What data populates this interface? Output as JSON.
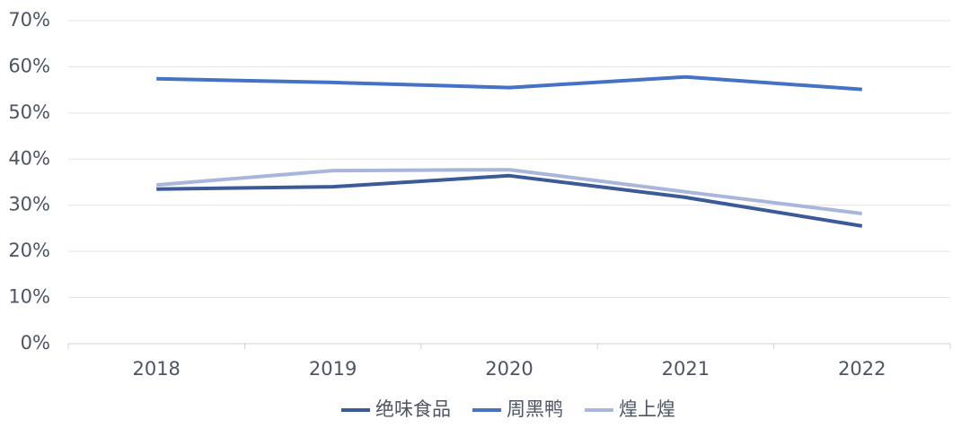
{
  "chart_data": {
    "type": "line",
    "categories": [
      "2018",
      "2019",
      "2020",
      "2021",
      "2022"
    ],
    "series": [
      {
        "name": "绝味食品",
        "color": "#3a5a9a",
        "values": [
          33.5,
          34.0,
          36.4,
          31.7,
          25.5
        ]
      },
      {
        "name": "周黑鸭",
        "color": "#4472c4",
        "values": [
          57.4,
          56.6,
          55.5,
          57.8,
          55.1
        ]
      },
      {
        "name": "煌上煌",
        "color": "#a9b6dc",
        "values": [
          34.4,
          37.5,
          37.7,
          32.9,
          28.2
        ]
      }
    ],
    "ylim": [
      0,
      70
    ],
    "yticks": [
      {
        "value": 0,
        "label": "0%"
      },
      {
        "value": 10,
        "label": "10%"
      },
      {
        "value": 20,
        "label": "20%"
      },
      {
        "value": 30,
        "label": "30%"
      },
      {
        "value": 40,
        "label": "40%"
      },
      {
        "value": 50,
        "label": "50%"
      },
      {
        "value": 60,
        "label": "60%"
      },
      {
        "value": 70,
        "label": "70%"
      }
    ],
    "grid": true,
    "legend": "bottom"
  }
}
